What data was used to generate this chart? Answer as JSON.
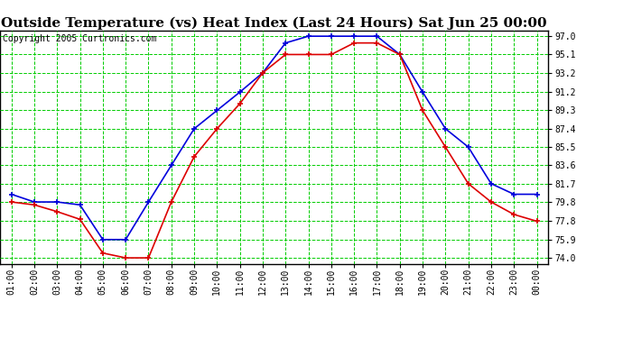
{
  "title": "Outside Temperature (vs) Heat Index (Last 24 Hours) Sat Jun 25 00:00",
  "copyright": "Copyright 2005 Curtronics.com",
  "x_labels": [
    "01:00",
    "02:00",
    "03:00",
    "04:00",
    "05:00",
    "06:00",
    "07:00",
    "08:00",
    "09:00",
    "10:00",
    "11:00",
    "12:00",
    "13:00",
    "14:00",
    "15:00",
    "16:00",
    "17:00",
    "18:00",
    "19:00",
    "20:00",
    "21:00",
    "22:00",
    "23:00",
    "00:00"
  ],
  "y_ticks": [
    74.0,
    75.9,
    77.8,
    79.8,
    81.7,
    83.6,
    85.5,
    87.4,
    89.3,
    91.2,
    93.2,
    95.1,
    97.0
  ],
  "ylim": [
    73.4,
    97.6
  ],
  "blue_line": [
    80.6,
    79.8,
    79.8,
    79.5,
    75.9,
    75.9,
    79.8,
    83.6,
    87.4,
    89.3,
    91.2,
    93.2,
    96.3,
    97.0,
    97.0,
    97.0,
    97.0,
    95.1,
    91.2,
    87.4,
    85.5,
    81.7,
    80.6,
    80.6
  ],
  "red_line": [
    79.8,
    79.5,
    78.8,
    78.0,
    74.5,
    74.0,
    74.0,
    79.8,
    84.5,
    87.4,
    90.0,
    93.2,
    95.1,
    95.1,
    95.1,
    96.3,
    96.3,
    95.1,
    89.3,
    85.5,
    81.7,
    79.8,
    78.5,
    77.8
  ],
  "blue_color": "#0000dd",
  "red_color": "#dd0000",
  "bg_color": "#ffffff",
  "grid_color": "#00cc00",
  "title_fontsize": 11,
  "copyright_fontsize": 7,
  "tick_fontsize": 7
}
